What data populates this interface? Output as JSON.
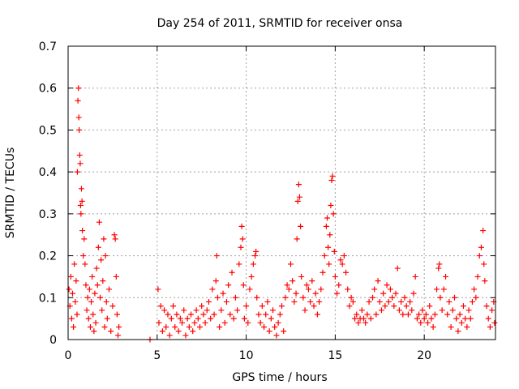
{
  "chart_data": {
    "type": "scatter",
    "title": "Day 254 of 2011, SRMTID for receiver onsa",
    "xlabel": "GPS time / hours",
    "ylabel": "SRMTID / TECUs",
    "xlim": [
      0,
      24
    ],
    "ylim": [
      0,
      0.7
    ],
    "xticks": [
      0,
      5,
      10,
      15,
      20
    ],
    "yticks": [
      0,
      0.1,
      0.2,
      0.3,
      0.4,
      0.5,
      0.6,
      0.7
    ],
    "grid": true,
    "marker": "+",
    "color": "#ff0000",
    "series": [
      {
        "name": "SRMTID",
        "points": [
          [
            0.05,
            0.12
          ],
          [
            0.1,
            0.08
          ],
          [
            0.15,
            0.15
          ],
          [
            0.2,
            0.05
          ],
          [
            0.25,
            0.11
          ],
          [
            0.3,
            0.03
          ],
          [
            0.35,
            0.18
          ],
          [
            0.4,
            0.09
          ],
          [
            0.45,
            0.14
          ],
          [
            0.5,
            0.06
          ],
          [
            0.52,
            0.4
          ],
          [
            0.55,
            0.57
          ],
          [
            0.58,
            0.6
          ],
          [
            0.6,
            0.53
          ],
          [
            0.62,
            0.5
          ],
          [
            0.65,
            0.44
          ],
          [
            0.68,
            0.42
          ],
          [
            0.7,
            0.32
          ],
          [
            0.72,
            0.3
          ],
          [
            0.75,
            0.36
          ],
          [
            0.78,
            0.33
          ],
          [
            0.8,
            0.26
          ],
          [
            0.85,
            0.2
          ],
          [
            0.9,
            0.24
          ],
          [
            0.95,
            0.18
          ],
          [
            1.0,
            0.13
          ],
          [
            1.05,
            0.07
          ],
          [
            1.1,
            0.1
          ],
          [
            1.15,
            0.05
          ],
          [
            1.2,
            0.12
          ],
          [
            1.25,
            0.03
          ],
          [
            1.3,
            0.09
          ],
          [
            1.35,
            0.15
          ],
          [
            1.4,
            0.06
          ],
          [
            1.45,
            0.02
          ],
          [
            1.5,
            0.11
          ],
          [
            1.55,
            0.04
          ],
          [
            1.6,
            0.17
          ],
          [
            1.65,
            0.13
          ],
          [
            1.7,
            0.22
          ],
          [
            1.75,
            0.28
          ],
          [
            1.8,
            0.1
          ],
          [
            1.85,
            0.19
          ],
          [
            1.9,
            0.07
          ],
          [
            1.95,
            0.14
          ],
          [
            2.0,
            0.24
          ],
          [
            2.05,
            0.03
          ],
          [
            2.1,
            0.2
          ],
          [
            2.15,
            0.09
          ],
          [
            2.2,
            0.05
          ],
          [
            2.3,
            0.12
          ],
          [
            2.4,
            0.02
          ],
          [
            2.5,
            0.08
          ],
          [
            2.6,
            0.25
          ],
          [
            2.65,
            0.24
          ],
          [
            2.7,
            0.15
          ],
          [
            2.75,
            0.06
          ],
          [
            2.8,
            0.01
          ],
          [
            2.85,
            0.03
          ],
          [
            4.6,
            0.0
          ],
          [
            5.05,
            0.12
          ],
          [
            5.1,
            0.04
          ],
          [
            5.2,
            0.08
          ],
          [
            5.3,
            0.02
          ],
          [
            5.4,
            0.07
          ],
          [
            5.5,
            0.03
          ],
          [
            5.6,
            0.06
          ],
          [
            5.7,
            0.01
          ],
          [
            5.8,
            0.05
          ],
          [
            5.9,
            0.08
          ],
          [
            6.0,
            0.03
          ],
          [
            6.1,
            0.06
          ],
          [
            6.2,
            0.02
          ],
          [
            6.3,
            0.05
          ],
          [
            6.4,
            0.04
          ],
          [
            6.5,
            0.07
          ],
          [
            6.6,
            0.01
          ],
          [
            6.7,
            0.05
          ],
          [
            6.8,
            0.03
          ],
          [
            6.9,
            0.06
          ],
          [
            7.0,
            0.02
          ],
          [
            7.1,
            0.04
          ],
          [
            7.2,
            0.07
          ],
          [
            7.3,
            0.05
          ],
          [
            7.4,
            0.03
          ],
          [
            7.5,
            0.08
          ],
          [
            7.6,
            0.06
          ],
          [
            7.7,
            0.04
          ],
          [
            7.8,
            0.07
          ],
          [
            7.9,
            0.09
          ],
          [
            8.0,
            0.05
          ],
          [
            8.1,
            0.12
          ],
          [
            8.2,
            0.06
          ],
          [
            8.3,
            0.14
          ],
          [
            8.35,
            0.2
          ],
          [
            8.4,
            0.1
          ],
          [
            8.5,
            0.03
          ],
          [
            8.6,
            0.07
          ],
          [
            8.7,
            0.11
          ],
          [
            8.8,
            0.04
          ],
          [
            8.9,
            0.09
          ],
          [
            9.0,
            0.13
          ],
          [
            9.1,
            0.06
          ],
          [
            9.2,
            0.16
          ],
          [
            9.3,
            0.05
          ],
          [
            9.4,
            0.1
          ],
          [
            9.5,
            0.07
          ],
          [
            9.6,
            0.18
          ],
          [
            9.7,
            0.22
          ],
          [
            9.75,
            0.27
          ],
          [
            9.8,
            0.24
          ],
          [
            9.85,
            0.13
          ],
          [
            9.9,
            0.05
          ],
          [
            10.0,
            0.08
          ],
          [
            10.1,
            0.04
          ],
          [
            10.2,
            0.12
          ],
          [
            10.3,
            0.15
          ],
          [
            10.4,
            0.18
          ],
          [
            10.5,
            0.2
          ],
          [
            10.55,
            0.21
          ],
          [
            10.6,
            0.1
          ],
          [
            10.7,
            0.06
          ],
          [
            10.8,
            0.04
          ],
          [
            10.9,
            0.08
          ],
          [
            11.0,
            0.03
          ],
          [
            11.1,
            0.06
          ],
          [
            11.2,
            0.09
          ],
          [
            11.3,
            0.02
          ],
          [
            11.4,
            0.05
          ],
          [
            11.5,
            0.07
          ],
          [
            11.6,
            0.03
          ],
          [
            11.7,
            0.01
          ],
          [
            11.8,
            0.04
          ],
          [
            11.9,
            0.06
          ],
          [
            12.0,
            0.08
          ],
          [
            12.1,
            0.02
          ],
          [
            12.2,
            0.1
          ],
          [
            12.3,
            0.13
          ],
          [
            12.4,
            0.12
          ],
          [
            12.5,
            0.18
          ],
          [
            12.6,
            0.14
          ],
          [
            12.7,
            0.09
          ],
          [
            12.8,
            0.11
          ],
          [
            12.85,
            0.24
          ],
          [
            12.9,
            0.33
          ],
          [
            12.95,
            0.37
          ],
          [
            13.0,
            0.34
          ],
          [
            13.05,
            0.27
          ],
          [
            13.1,
            0.15
          ],
          [
            13.2,
            0.1
          ],
          [
            13.3,
            0.07
          ],
          [
            13.4,
            0.13
          ],
          [
            13.5,
            0.12
          ],
          [
            13.6,
            0.09
          ],
          [
            13.7,
            0.14
          ],
          [
            13.8,
            0.08
          ],
          [
            13.9,
            0.11
          ],
          [
            14.0,
            0.06
          ],
          [
            14.1,
            0.09
          ],
          [
            14.2,
            0.12
          ],
          [
            14.3,
            0.16
          ],
          [
            14.4,
            0.2
          ],
          [
            14.5,
            0.27
          ],
          [
            14.55,
            0.29
          ],
          [
            14.6,
            0.22
          ],
          [
            14.65,
            0.18
          ],
          [
            14.7,
            0.25
          ],
          [
            14.75,
            0.32
          ],
          [
            14.8,
            0.38
          ],
          [
            14.85,
            0.39
          ],
          [
            14.9,
            0.3
          ],
          [
            14.95,
            0.21
          ],
          [
            15.0,
            0.15
          ],
          [
            15.1,
            0.11
          ],
          [
            15.2,
            0.13
          ],
          [
            15.3,
            0.19
          ],
          [
            15.4,
            0.18
          ],
          [
            15.5,
            0.2
          ],
          [
            15.6,
            0.16
          ],
          [
            15.7,
            0.12
          ],
          [
            15.8,
            0.08
          ],
          [
            15.9,
            0.1
          ],
          [
            16.0,
            0.09
          ],
          [
            16.1,
            0.05
          ],
          [
            16.2,
            0.06
          ],
          [
            16.3,
            0.04
          ],
          [
            16.4,
            0.05
          ],
          [
            16.5,
            0.07
          ],
          [
            16.6,
            0.05
          ],
          [
            16.7,
            0.04
          ],
          [
            16.8,
            0.06
          ],
          [
            16.9,
            0.09
          ],
          [
            17.0,
            0.05
          ],
          [
            17.1,
            0.1
          ],
          [
            17.2,
            0.12
          ],
          [
            17.3,
            0.06
          ],
          [
            17.4,
            0.14
          ],
          [
            17.5,
            0.09
          ],
          [
            17.6,
            0.07
          ],
          [
            17.7,
            0.11
          ],
          [
            17.8,
            0.08
          ],
          [
            17.9,
            0.13
          ],
          [
            18.0,
            0.09
          ],
          [
            18.1,
            0.12
          ],
          [
            18.2,
            0.1
          ],
          [
            18.3,
            0.08
          ],
          [
            18.4,
            0.11
          ],
          [
            18.5,
            0.17
          ],
          [
            18.6,
            0.07
          ],
          [
            18.7,
            0.09
          ],
          [
            18.8,
            0.06
          ],
          [
            18.9,
            0.1
          ],
          [
            19.0,
            0.08
          ],
          [
            19.1,
            0.06
          ],
          [
            19.2,
            0.09
          ],
          [
            19.3,
            0.07
          ],
          [
            19.4,
            0.11
          ],
          [
            19.5,
            0.15
          ],
          [
            19.6,
            0.05
          ],
          [
            19.7,
            0.06
          ],
          [
            19.8,
            0.04
          ],
          [
            19.9,
            0.07
          ],
          [
            20.0,
            0.05
          ],
          [
            20.1,
            0.06
          ],
          [
            20.2,
            0.04
          ],
          [
            20.3,
            0.08
          ],
          [
            20.4,
            0.05
          ],
          [
            20.5,
            0.03
          ],
          [
            20.6,
            0.06
          ],
          [
            20.7,
            0.12
          ],
          [
            20.8,
            0.17
          ],
          [
            20.85,
            0.18
          ],
          [
            20.9,
            0.1
          ],
          [
            21.0,
            0.07
          ],
          [
            21.1,
            0.12
          ],
          [
            21.2,
            0.15
          ],
          [
            21.3,
            0.06
          ],
          [
            21.4,
            0.09
          ],
          [
            21.5,
            0.03
          ],
          [
            21.6,
            0.07
          ],
          [
            21.7,
            0.1
          ],
          [
            21.8,
            0.05
          ],
          [
            21.9,
            0.02
          ],
          [
            22.0,
            0.06
          ],
          [
            22.1,
            0.04
          ],
          [
            22.2,
            0.08
          ],
          [
            22.3,
            0.05
          ],
          [
            22.4,
            0.03
          ],
          [
            22.5,
            0.07
          ],
          [
            22.6,
            0.05
          ],
          [
            22.7,
            0.09
          ],
          [
            22.8,
            0.12
          ],
          [
            22.9,
            0.1
          ],
          [
            23.0,
            0.15
          ],
          [
            23.1,
            0.2
          ],
          [
            23.2,
            0.22
          ],
          [
            23.3,
            0.26
          ],
          [
            23.35,
            0.18
          ],
          [
            23.4,
            0.14
          ],
          [
            23.5,
            0.08
          ],
          [
            23.6,
            0.05
          ],
          [
            23.7,
            0.03
          ],
          [
            23.8,
            0.07
          ],
          [
            23.9,
            0.09
          ],
          [
            23.95,
            0.04
          ]
        ]
      }
    ]
  }
}
